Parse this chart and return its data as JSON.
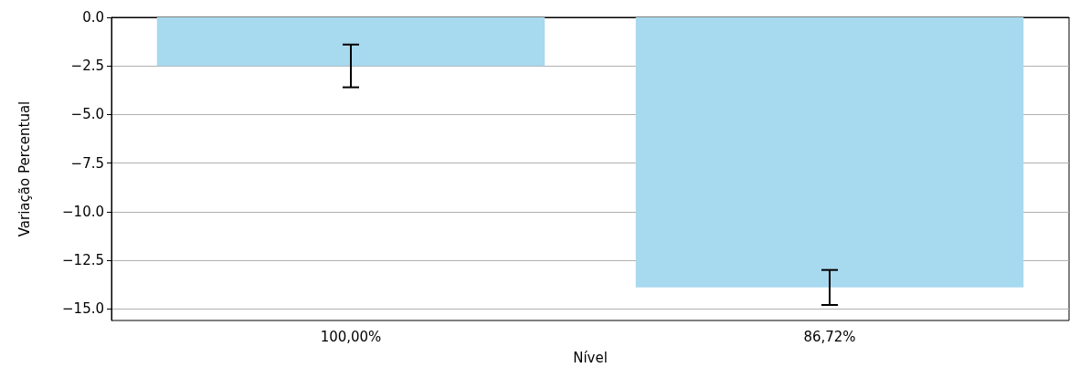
{
  "chart_data": {
    "type": "bar",
    "xlabel": "Nível",
    "ylabel": "Variação Percentual",
    "categories": [
      "100,00%",
      "86,72%"
    ],
    "values": [
      -2.5,
      -13.9
    ],
    "errors": [
      1.1,
      0.9
    ],
    "color": "#a7d9ef",
    "ylim": [
      -15.6,
      0
    ],
    "yticks": [
      {
        "value": -15,
        "label": "−15.0"
      },
      {
        "value": -12.5,
        "label": "−12.5"
      },
      {
        "value": -10,
        "label": "−10.0"
      },
      {
        "value": -7.5,
        "label": "−7.5"
      },
      {
        "value": -5,
        "label": "−5.0"
      },
      {
        "value": -2.5,
        "label": "−2.5"
      },
      {
        "value": 0,
        "label": "0.0"
      }
    ],
    "grid": "y"
  }
}
